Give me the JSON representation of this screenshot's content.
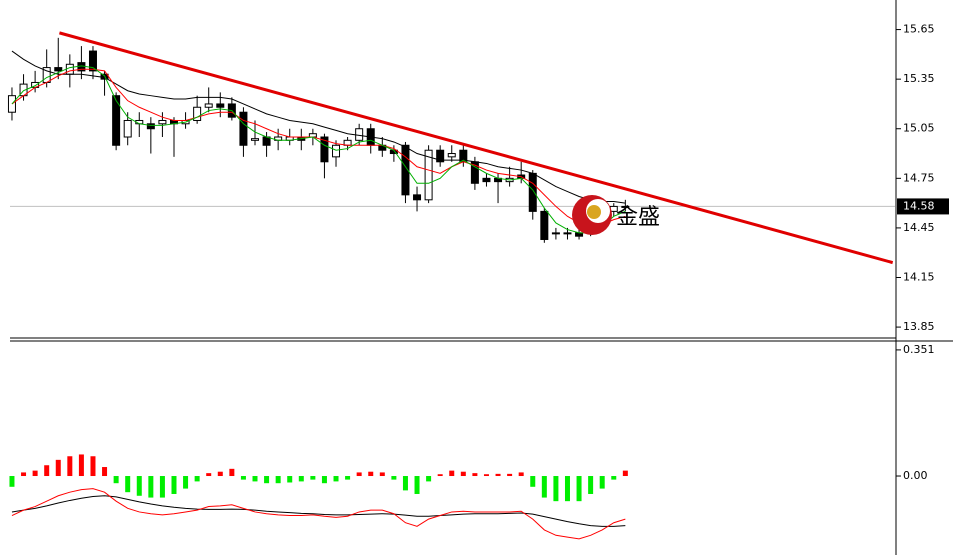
{
  "chart_data": [
    {
      "type": "candlestick",
      "xlim": [
        -0.17,
        76.3
      ],
      "ylim": [
        13.79,
        15.72
      ],
      "yticks": [
        15.65,
        15.35,
        15.05,
        14.75,
        14.45,
        14.15,
        13.85
      ],
      "up_color": "#ffffff",
      "down_color": "#000000",
      "open": [
        15.15,
        15.25,
        15.3,
        15.33,
        15.42,
        15.38,
        15.45,
        15.52,
        15.38,
        15.25,
        15.0,
        15.08,
        15.08,
        15.08,
        15.1,
        15.08,
        15.1,
        15.18,
        15.2,
        15.2,
        15.15,
        14.98,
        15.0,
        14.98,
        14.98,
        15.0,
        15.0,
        15.0,
        14.88,
        14.95,
        14.98,
        15.05,
        14.95,
        14.92,
        14.95,
        14.65,
        14.62,
        14.92,
        14.88,
        14.92,
        14.85,
        14.75,
        14.75,
        14.73,
        14.77,
        14.78,
        14.55,
        14.42,
        14.42,
        14.42,
        14.42,
        14.45,
        14.55,
        14.58
      ],
      "high": [
        15.3,
        15.38,
        15.4,
        15.53,
        15.6,
        15.5,
        15.55,
        15.55,
        15.4,
        15.27,
        15.15,
        15.15,
        15.12,
        15.15,
        15.12,
        15.15,
        15.25,
        15.3,
        15.27,
        15.24,
        15.18,
        15.1,
        15.03,
        15.05,
        15.05,
        15.05,
        15.05,
        15.02,
        14.98,
        15.0,
        15.08,
        15.08,
        15.0,
        14.95,
        14.97,
        14.7,
        14.95,
        14.95,
        14.95,
        14.95,
        14.88,
        14.78,
        14.78,
        14.82,
        14.85,
        14.8,
        14.57,
        14.45,
        14.45,
        14.48,
        14.48,
        14.6,
        14.6,
        14.62
      ],
      "low": [
        15.1,
        15.22,
        15.27,
        15.3,
        15.35,
        15.3,
        15.35,
        15.35,
        15.25,
        14.92,
        14.95,
        15.0,
        14.9,
        15.0,
        14.88,
        15.05,
        15.08,
        15.15,
        15.12,
        15.1,
        14.88,
        14.95,
        14.88,
        14.92,
        14.95,
        14.92,
        14.95,
        14.75,
        14.82,
        14.92,
        14.95,
        14.9,
        14.88,
        14.85,
        14.6,
        14.55,
        14.6,
        14.82,
        14.85,
        14.82,
        14.68,
        14.7,
        14.6,
        14.7,
        14.72,
        14.5,
        14.36,
        14.38,
        14.38,
        14.38,
        14.4,
        14.45,
        14.52,
        14.55
      ],
      "close": [
        15.25,
        15.32,
        15.33,
        15.42,
        15.4,
        15.44,
        15.4,
        15.4,
        15.35,
        14.95,
        15.1,
        15.1,
        15.05,
        15.1,
        15.08,
        15.1,
        15.18,
        15.2,
        15.18,
        15.12,
        14.95,
        14.99,
        14.95,
        15.0,
        15.0,
        14.98,
        15.02,
        14.85,
        14.95,
        14.98,
        15.05,
        14.95,
        14.92,
        14.9,
        14.65,
        14.62,
        14.92,
        14.85,
        14.9,
        14.85,
        14.72,
        14.73,
        14.73,
        14.75,
        14.75,
        14.55,
        14.38,
        14.42,
        14.42,
        14.4,
        14.44,
        14.56,
        14.58,
        14.58
      ],
      "lines": [
        {
          "color": "#000000",
          "values": [
            15.52,
            15.47,
            15.43,
            15.4,
            15.38,
            15.38,
            15.38,
            15.37,
            15.36,
            15.32,
            15.28,
            15.26,
            15.25,
            15.24,
            15.23,
            15.23,
            15.24,
            15.24,
            15.24,
            15.23,
            15.2,
            15.17,
            15.14,
            15.12,
            15.1,
            15.09,
            15.08,
            15.06,
            15.04,
            15.02,
            15.01,
            15.0,
            14.99,
            14.97,
            14.94,
            14.9,
            14.88,
            14.86,
            14.86,
            14.86,
            14.85,
            14.84,
            14.82,
            14.81,
            14.8,
            14.78,
            14.74,
            14.7,
            14.67,
            14.64,
            14.62,
            14.61,
            14.61,
            14.6
          ]
        },
        {
          "color": "#ff0000",
          "values": [
            15.2,
            15.25,
            15.3,
            15.33,
            15.37,
            15.4,
            15.41,
            15.41,
            15.4,
            15.3,
            15.22,
            15.18,
            15.15,
            15.12,
            15.1,
            15.1,
            15.12,
            15.14,
            15.15,
            15.15,
            15.1,
            15.08,
            15.05,
            15.02,
            15.0,
            15.0,
            15.0,
            14.98,
            14.96,
            14.95,
            14.95,
            14.95,
            14.95,
            14.93,
            14.88,
            14.82,
            14.8,
            14.78,
            14.82,
            14.85,
            14.83,
            14.8,
            14.78,
            14.77,
            14.76,
            14.72,
            14.65,
            14.58,
            14.52,
            14.48,
            14.45,
            14.47,
            14.5,
            14.52
          ]
        },
        {
          "color": "#00b000",
          "values": [
            15.2,
            15.28,
            15.31,
            15.36,
            15.39,
            15.42,
            15.43,
            15.42,
            15.37,
            15.22,
            15.12,
            15.08,
            15.07,
            15.07,
            15.08,
            15.09,
            15.12,
            15.16,
            15.17,
            15.16,
            15.08,
            15.03,
            15.0,
            14.98,
            14.98,
            14.99,
            15.0,
            14.95,
            14.92,
            14.93,
            14.97,
            14.98,
            14.95,
            14.92,
            14.82,
            14.72,
            14.72,
            14.75,
            14.82,
            14.86,
            14.82,
            14.78,
            14.75,
            14.74,
            14.75,
            14.68,
            14.57,
            14.48,
            14.44,
            14.42,
            14.42,
            14.46,
            14.52,
            14.55
          ]
        }
      ],
      "trendline": {
        "color": "#e00000",
        "x": [
          4.1,
          76.1
        ],
        "values": [
          15.63,
          14.24
        ]
      },
      "last_price": 14.58,
      "watermark": "金盛"
    },
    {
      "type": "macd",
      "xlim": [
        -0.17,
        76.3
      ],
      "ylim": [
        -0.192,
        0.373
      ],
      "yticks": [
        0.351,
        {
          "value": 0,
          "label": "0.00"
        }
      ],
      "up_color": "#ff0000",
      "down_color": "#00ee00",
      "values": [
        -0.03,
        0.01,
        0.015,
        0.03,
        0.045,
        0.055,
        0.06,
        0.055,
        0.025,
        -0.02,
        -0.045,
        -0.055,
        -0.06,
        -0.06,
        -0.05,
        -0.035,
        -0.015,
        0.008,
        0.012,
        0.02,
        -0.01,
        -0.015,
        -0.02,
        -0.02,
        -0.018,
        -0.015,
        -0.01,
        -0.02,
        -0.015,
        -0.01,
        0.01,
        0.012,
        0.01,
        -0.01,
        -0.04,
        -0.05,
        -0.015,
        0.005,
        0.015,
        0.012,
        0.008,
        0.005,
        0.006,
        0.006,
        0.01,
        -0.03,
        -0.06,
        -0.07,
        -0.07,
        -0.07,
        -0.05,
        -0.035,
        -0.01,
        0.015
      ],
      "lines": [
        {
          "color": "#000000",
          "values": [
            -0.1,
            -0.095,
            -0.09,
            -0.083,
            -0.075,
            -0.068,
            -0.062,
            -0.057,
            -0.055,
            -0.058,
            -0.065,
            -0.072,
            -0.078,
            -0.083,
            -0.087,
            -0.09,
            -0.092,
            -0.093,
            -0.093,
            -0.092,
            -0.093,
            -0.095,
            -0.098,
            -0.1,
            -0.102,
            -0.104,
            -0.105,
            -0.107,
            -0.108,
            -0.108,
            -0.107,
            -0.106,
            -0.105,
            -0.106,
            -0.109,
            -0.112,
            -0.112,
            -0.11,
            -0.108,
            -0.106,
            -0.105,
            -0.105,
            -0.105,
            -0.104,
            -0.103,
            -0.106,
            -0.113,
            -0.12,
            -0.127,
            -0.133,
            -0.138,
            -0.14,
            -0.14,
            -0.138
          ]
        },
        {
          "color": "#ff0000",
          "values": [
            -0.11,
            -0.095,
            -0.085,
            -0.07,
            -0.055,
            -0.045,
            -0.038,
            -0.035,
            -0.045,
            -0.07,
            -0.09,
            -0.1,
            -0.105,
            -0.108,
            -0.105,
            -0.1,
            -0.095,
            -0.085,
            -0.083,
            -0.08,
            -0.09,
            -0.1,
            -0.105,
            -0.108,
            -0.11,
            -0.11,
            -0.108,
            -0.112,
            -0.115,
            -0.112,
            -0.1,
            -0.095,
            -0.095,
            -0.105,
            -0.13,
            -0.14,
            -0.12,
            -0.11,
            -0.1,
            -0.098,
            -0.1,
            -0.1,
            -0.1,
            -0.1,
            -0.098,
            -0.12,
            -0.15,
            -0.165,
            -0.17,
            -0.175,
            -0.165,
            -0.15,
            -0.13,
            -0.12
          ]
        }
      ]
    }
  ]
}
